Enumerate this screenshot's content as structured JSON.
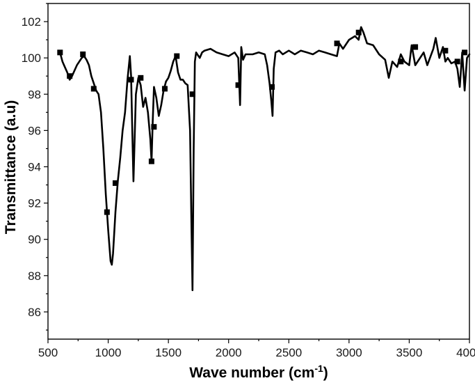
{
  "chart_data": {
    "type": "line",
    "xlabel": "Wave number (cm",
    "xlabel_sup": "-1",
    "xlabel_tail": ")",
    "ylabel": "Transmittance (a.u)",
    "xlim": [
      500,
      4000
    ],
    "ylim": [
      84.5,
      103
    ],
    "x_ticks": [
      500,
      1000,
      1500,
      2000,
      2500,
      3000,
      3500,
      4000
    ],
    "x_tick_labels": [
      "500",
      "1000",
      "1500",
      "2000",
      "2500",
      "3000",
      "3500",
      "4000"
    ],
    "y_ticks": [
      86,
      88,
      90,
      92,
      94,
      96,
      98,
      100,
      102
    ],
    "y_tick_labels": [
      "86",
      "88",
      "90",
      "92",
      "94",
      "96",
      "98",
      "100",
      "102"
    ],
    "grid": false,
    "line_color": "#000000",
    "series": [
      {
        "x": [
          600,
          620,
          640,
          660,
          680,
          700,
          720,
          740,
          760,
          780,
          800,
          820,
          840,
          860,
          880,
          900,
          920,
          940,
          960,
          980,
          1000,
          1020,
          1030,
          1040,
          1060,
          1080,
          1100,
          1120,
          1140,
          1160,
          1180,
          1190,
          1200,
          1210,
          1230,
          1250,
          1270,
          1290,
          1310,
          1330,
          1350,
          1360,
          1370,
          1380,
          1400,
          1420,
          1440,
          1460,
          1480,
          1500,
          1520,
          1540,
          1560,
          1580,
          1600,
          1620,
          1640,
          1660,
          1680,
          1690,
          1700,
          1710,
          1720,
          1730,
          1740,
          1760,
          1780,
          1800,
          1850,
          1900,
          1950,
          2000,
          2050,
          2080,
          2095,
          2105,
          2120,
          2140,
          2160,
          2200,
          2250,
          2300,
          2320,
          2340,
          2355,
          2365,
          2375,
          2390,
          2420,
          2450,
          2500,
          2550,
          2600,
          2650,
          2700,
          2750,
          2800,
          2850,
          2900,
          2920,
          2950,
          3000,
          3050,
          3080,
          3100,
          3120,
          3150,
          3200,
          3250,
          3300,
          3330,
          3360,
          3400,
          3430,
          3460,
          3500,
          3520,
          3550,
          3600,
          3620,
          3650,
          3700,
          3720,
          3750,
          3780,
          3800,
          3820,
          3850,
          3880,
          3900,
          3920,
          3940,
          3960,
          3980,
          4000
        ],
        "y": [
          100.3,
          99.8,
          99.5,
          99.2,
          98.8,
          99.0,
          99.3,
          99.6,
          99.8,
          100.0,
          100.1,
          99.9,
          99.6,
          99.0,
          98.6,
          98.2,
          98.0,
          97.0,
          95.0,
          92.5,
          90.5,
          88.8,
          88.6,
          89.2,
          91.5,
          93.2,
          94.5,
          96.0,
          97.0,
          98.8,
          100.1,
          99.0,
          96.0,
          93.2,
          98.0,
          98.9,
          98.5,
          97.3,
          97.8,
          97.0,
          95.5,
          94.3,
          96.5,
          98.4,
          97.8,
          96.8,
          97.4,
          98.2,
          98.7,
          98.9,
          99.3,
          99.8,
          100.1,
          99.2,
          98.8,
          98.8,
          98.6,
          98.5,
          96.0,
          91.5,
          87.2,
          95.0,
          99.8,
          100.3,
          100.2,
          100.0,
          100.3,
          100.4,
          100.5,
          100.3,
          100.2,
          100.1,
          100.3,
          100.0,
          97.4,
          100.6,
          99.9,
          100.2,
          100.2,
          100.2,
          100.3,
          100.2,
          99.6,
          98.6,
          97.6,
          96.8,
          99.4,
          100.3,
          100.4,
          100.2,
          100.4,
          100.2,
          100.4,
          100.3,
          100.2,
          100.4,
          100.3,
          100.2,
          100.1,
          100.8,
          100.5,
          101.0,
          101.2,
          101.0,
          101.7,
          101.4,
          100.8,
          100.7,
          100.2,
          99.9,
          98.9,
          99.8,
          99.5,
          100.2,
          99.8,
          99.6,
          100.7,
          99.6,
          100.1,
          100.3,
          99.6,
          100.5,
          101.1,
          100.0,
          100.6,
          99.8,
          100.0,
          99.7,
          99.8,
          99.4,
          98.4,
          100.3,
          98.2,
          100.0,
          100.2
        ]
      }
    ],
    "markers": [
      [
        600,
        100.3
      ],
      [
        680,
        99.0
      ],
      [
        790,
        100.2
      ],
      [
        880,
        98.3
      ],
      [
        990,
        91.5
      ],
      [
        1060,
        93.1
      ],
      [
        1190,
        98.8
      ],
      [
        1270,
        98.9
      ],
      [
        1360,
        94.3
      ],
      [
        1380,
        96.2
      ],
      [
        1470,
        98.3
      ],
      [
        1570,
        100.1
      ],
      [
        1700,
        98.0
      ],
      [
        2080,
        98.5
      ],
      [
        2360,
        98.4
      ],
      [
        2900,
        100.8
      ],
      [
        3080,
        101.4
      ],
      [
        3430,
        99.8
      ],
      [
        3550,
        100.6
      ],
      [
        3800,
        100.4
      ],
      [
        3900,
        99.8
      ],
      [
        3960,
        100.3
      ]
    ]
  }
}
